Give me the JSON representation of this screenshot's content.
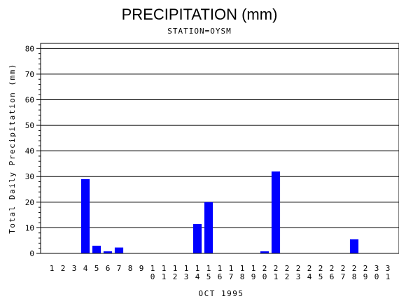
{
  "chart_data": {
    "type": "bar",
    "title": "PRECIPITATION (mm)",
    "subtitle": "STATION=OYSM",
    "xlabel": "OCT 1995",
    "ylabel": "Total Daily Precipitation (mm)",
    "ylim": [
      0,
      82
    ],
    "yticks": [
      0,
      10,
      20,
      30,
      40,
      50,
      60,
      70,
      80
    ],
    "grid": true,
    "bar_color": "#0000ff",
    "categories": [
      "1",
      "2",
      "3",
      "4",
      "5",
      "6",
      "7",
      "8",
      "9",
      "10",
      "11",
      "12",
      "13",
      "14",
      "15",
      "16",
      "17",
      "18",
      "19",
      "20",
      "21",
      "22",
      "23",
      "24",
      "25",
      "26",
      "27",
      "28",
      "29",
      "30",
      "31"
    ],
    "values": [
      0,
      0,
      0,
      29,
      3,
      0.8,
      2.3,
      0,
      0,
      0,
      0,
      0,
      0,
      11.5,
      20,
      0,
      0,
      0,
      0,
      0.8,
      32,
      0,
      0,
      0,
      0,
      0,
      0,
      5.5,
      0,
      0,
      0
    ]
  }
}
